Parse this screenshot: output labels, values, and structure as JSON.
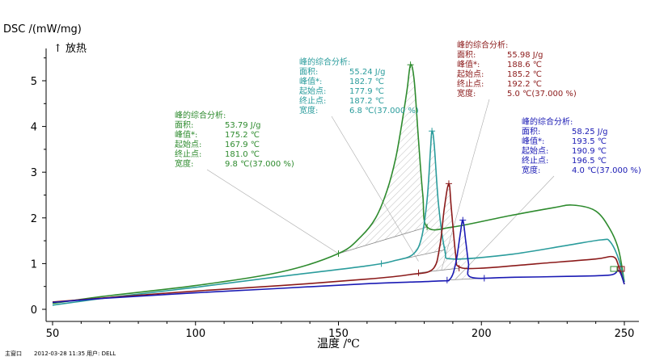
{
  "chart_data": {
    "type": "line",
    "ylabel": "DSC /(mW/mg)",
    "heat_direction": "↑ 放热",
    "xlabel": "温度 /℃",
    "xlim": [
      50,
      250
    ],
    "ylim": [
      -0.1,
      5.6
    ],
    "x_ticks": [
      50,
      100,
      150,
      200,
      250
    ],
    "y_ticks": [
      0,
      1,
      2,
      3,
      4,
      5
    ],
    "grid": false,
    "series": [
      {
        "color": "#2e8b2e",
        "points": [
          [
            50,
            0.13
          ],
          [
            70,
            0.3
          ],
          [
            100,
            0.52
          ],
          [
            130,
            0.82
          ],
          [
            150,
            1.22
          ],
          [
            158,
            1.6
          ],
          [
            163,
            2.0
          ],
          [
            167,
            2.6
          ],
          [
            170,
            3.3
          ],
          [
            172,
            4.0
          ],
          [
            174,
            4.8
          ],
          [
            175.2,
            5.35
          ],
          [
            176.5,
            5.0
          ],
          [
            178,
            3.7
          ],
          [
            179.5,
            2.5
          ],
          [
            181,
            1.8
          ],
          [
            190,
            1.8
          ],
          [
            210,
            2.05
          ],
          [
            225,
            2.22
          ],
          [
            232,
            2.28
          ],
          [
            240,
            2.15
          ],
          [
            245,
            1.75
          ],
          [
            248,
            1.3
          ],
          [
            250,
            0.6
          ]
        ],
        "baseline": [
          [
            150,
            1.22
          ],
          [
            181,
            1.8
          ]
        ],
        "analysis": {
          "title": "峰的综合分析:",
          "rows": [
            {
              "label": "面积:",
              "value": "53.79 J/g"
            },
            {
              "label": "峰值*:",
              "value": "175.2 ℃"
            },
            {
              "label": "起始点:",
              "value": "167.9 ℃"
            },
            {
              "label": "终止点:",
              "value": "181.0 ℃"
            },
            {
              "label": "宽度:",
              "value": "9.8 ℃(37.000 %)"
            }
          ]
        }
      },
      {
        "color": "#2a9c9c",
        "points": [
          [
            50,
            0.09
          ],
          [
            70,
            0.26
          ],
          [
            100,
            0.48
          ],
          [
            130,
            0.72
          ],
          [
            160,
            0.95
          ],
          [
            170,
            1.07
          ],
          [
            176,
            1.2
          ],
          [
            179,
            1.55
          ],
          [
            181,
            2.4
          ],
          [
            182.2,
            3.5
          ],
          [
            182.7,
            3.9
          ],
          [
            183.5,
            3.6
          ],
          [
            185,
            2.3
          ],
          [
            187.2,
            1.3
          ],
          [
            190,
            1.1
          ],
          [
            210,
            1.2
          ],
          [
            230,
            1.4
          ],
          [
            242,
            1.52
          ],
          [
            245,
            1.48
          ],
          [
            248,
            1.1
          ],
          [
            250,
            0.6
          ]
        ],
        "baseline": [
          [
            165,
            1.0
          ],
          [
            187.2,
            1.3
          ]
        ],
        "analysis": {
          "title": "峰的综合分析:",
          "rows": [
            {
              "label": "面积:",
              "value": "55.24 J/g"
            },
            {
              "label": "峰值*:",
              "value": "182.7 ℃"
            },
            {
              "label": "起始点:",
              "value": "177.9 ℃"
            },
            {
              "label": "终止点:",
              "value": "187.2 ℃"
            },
            {
              "label": "宽度:",
              "value": "6.8 ℃(37.000 %)"
            }
          ]
        }
      },
      {
        "color": "#8b1a1a",
        "points": [
          [
            50,
            0.16
          ],
          [
            70,
            0.26
          ],
          [
            100,
            0.4
          ],
          [
            130,
            0.52
          ],
          [
            160,
            0.66
          ],
          [
            175,
            0.76
          ],
          [
            183,
            0.88
          ],
          [
            185.5,
            1.4
          ],
          [
            187,
            2.2
          ],
          [
            188.6,
            2.75
          ],
          [
            189.5,
            2.2
          ],
          [
            191,
            1.2
          ],
          [
            192.2,
            0.93
          ],
          [
            200,
            0.9
          ],
          [
            220,
            1.0
          ],
          [
            240,
            1.1
          ],
          [
            246,
            1.15
          ],
          [
            248,
            0.95
          ],
          [
            250,
            0.55
          ]
        ],
        "baseline": [
          [
            178,
            0.8
          ],
          [
            192.2,
            0.9
          ]
        ],
        "analysis": {
          "title": "峰的综合分析:",
          "rows": [
            {
              "label": "面积:",
              "value": "55.98 J/g"
            },
            {
              "label": "峰值*:",
              "value": "188.6 ℃"
            },
            {
              "label": "起始点:",
              "value": "185.2 ℃"
            },
            {
              "label": "终止点:",
              "value": "192.2 ℃"
            },
            {
              "label": "宽度:",
              "value": "5.0 ℃(37.000 %)"
            }
          ]
        }
      },
      {
        "color": "#1a1ab4",
        "points": [
          [
            50,
            0.15
          ],
          [
            70,
            0.25
          ],
          [
            100,
            0.36
          ],
          [
            130,
            0.46
          ],
          [
            160,
            0.56
          ],
          [
            185,
            0.62
          ],
          [
            189,
            0.66
          ],
          [
            191,
            1.0
          ],
          [
            192.5,
            1.6
          ],
          [
            193.5,
            1.95
          ],
          [
            194.5,
            1.5
          ],
          [
            195.5,
            1.0
          ],
          [
            196.5,
            0.7
          ],
          [
            210,
            0.7
          ],
          [
            230,
            0.72
          ],
          [
            245,
            0.75
          ],
          [
            248,
            0.85
          ],
          [
            250,
            0.55
          ]
        ],
        "baseline": [
          [
            188,
            0.64
          ],
          [
            201,
            0.68
          ]
        ],
        "analysis": {
          "title": "峰的综合分析:",
          "rows": [
            {
              "label": "面积:",
              "value": "58.25 J/g"
            },
            {
              "label": "峰值*:",
              "value": "193.5 ℃"
            },
            {
              "label": "起始点:",
              "value": "190.9 ℃"
            },
            {
              "label": "终止点:",
              "value": "196.5 ℃"
            },
            {
              "label": "宽度:",
              "value": "4.0 ℃(37.000 %)"
            }
          ]
        }
      }
    ]
  },
  "footer": {
    "window": "主窗口",
    "datetime": "2012-03-28 11:35",
    "user": "用户: DELL"
  }
}
